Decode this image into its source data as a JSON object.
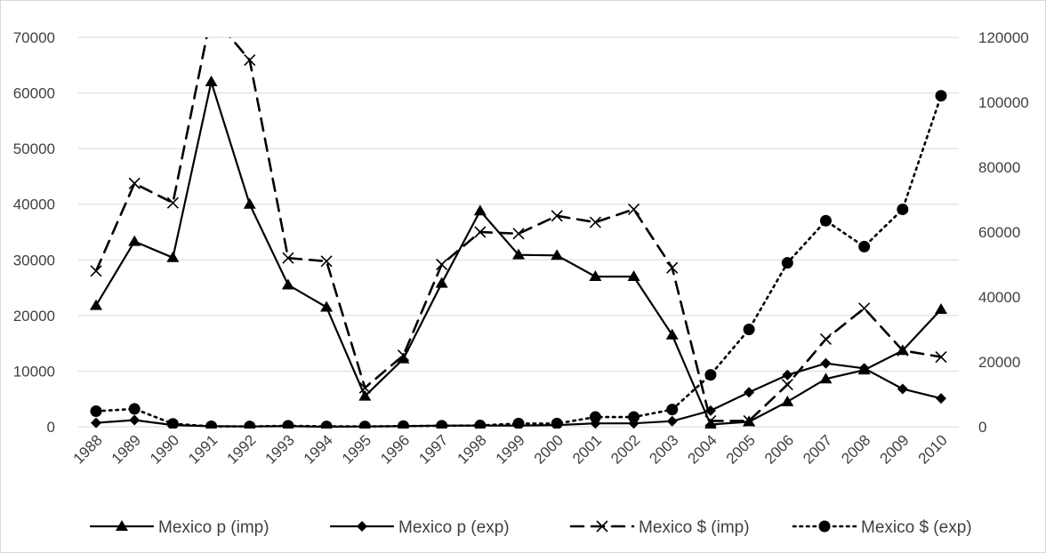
{
  "chart_data": {
    "type": "line",
    "title": "",
    "xlabel": "",
    "ylabel": "",
    "x": [
      "1988",
      "1989",
      "1990",
      "1991",
      "1992",
      "1993",
      "1994",
      "1995",
      "1996",
      "1997",
      "1998",
      "1999",
      "2000",
      "2001",
      "2002",
      "2003",
      "2004",
      "2005",
      "2006",
      "2007",
      "2008",
      "2009",
      "2010"
    ],
    "y_left": {
      "min": 0,
      "max": 70000,
      "step": 10000,
      "ticks": [
        "0",
        "10000",
        "20000",
        "30000",
        "40000",
        "50000",
        "60000",
        "70000"
      ]
    },
    "y_right": {
      "min": 0,
      "max": 120000,
      "step": 20000,
      "ticks": [
        "0",
        "20000",
        "40000",
        "60000",
        "80000",
        "100000",
        "120000"
      ]
    },
    "grid": true,
    "legend_position": "bottom",
    "series": [
      {
        "name": "Mexico p (imp)",
        "axis": "left",
        "style": "solid",
        "marker": "triangle",
        "values": [
          21800,
          33300,
          30400,
          62000,
          40000,
          25500,
          21500,
          5500,
          12200,
          25800,
          38800,
          30900,
          30800,
          27000,
          27000,
          16500,
          400,
          900,
          4500,
          8600,
          10200,
          13700,
          21100
        ]
      },
      {
        "name": "Mexico p (exp)",
        "axis": "left",
        "style": "solid",
        "marker": "diamond",
        "values": [
          700,
          1200,
          300,
          100,
          50,
          100,
          0,
          50,
          100,
          200,
          200,
          200,
          300,
          600,
          600,
          1000,
          2900,
          6200,
          9300,
          11400,
          10500,
          6800,
          5100
        ]
      },
      {
        "name": "Mexico $ (imp)",
        "axis": "right",
        "style": "dashed",
        "marker": "x",
        "values": [
          48000,
          75000,
          69000,
          127000,
          113000,
          52000,
          51000,
          12000,
          22000,
          50000,
          60000,
          59500,
          65000,
          63000,
          67000,
          49000,
          1800,
          1800,
          13000,
          27000,
          36500,
          23500,
          21500
        ]
      },
      {
        "name": "Mexico $ (exp)",
        "axis": "right",
        "style": "dotted",
        "marker": "circle",
        "values": [
          4800,
          5500,
          900,
          150,
          100,
          300,
          100,
          100,
          200,
          300,
          400,
          1000,
          1000,
          3000,
          3000,
          5300,
          16000,
          30000,
          50500,
          63500,
          55500,
          67000,
          102000
        ]
      }
    ]
  },
  "colors": {
    "series": "#000000",
    "grid": "#d9d9d9",
    "tick_text": "#404040",
    "frame": "#d9d9d9"
  }
}
